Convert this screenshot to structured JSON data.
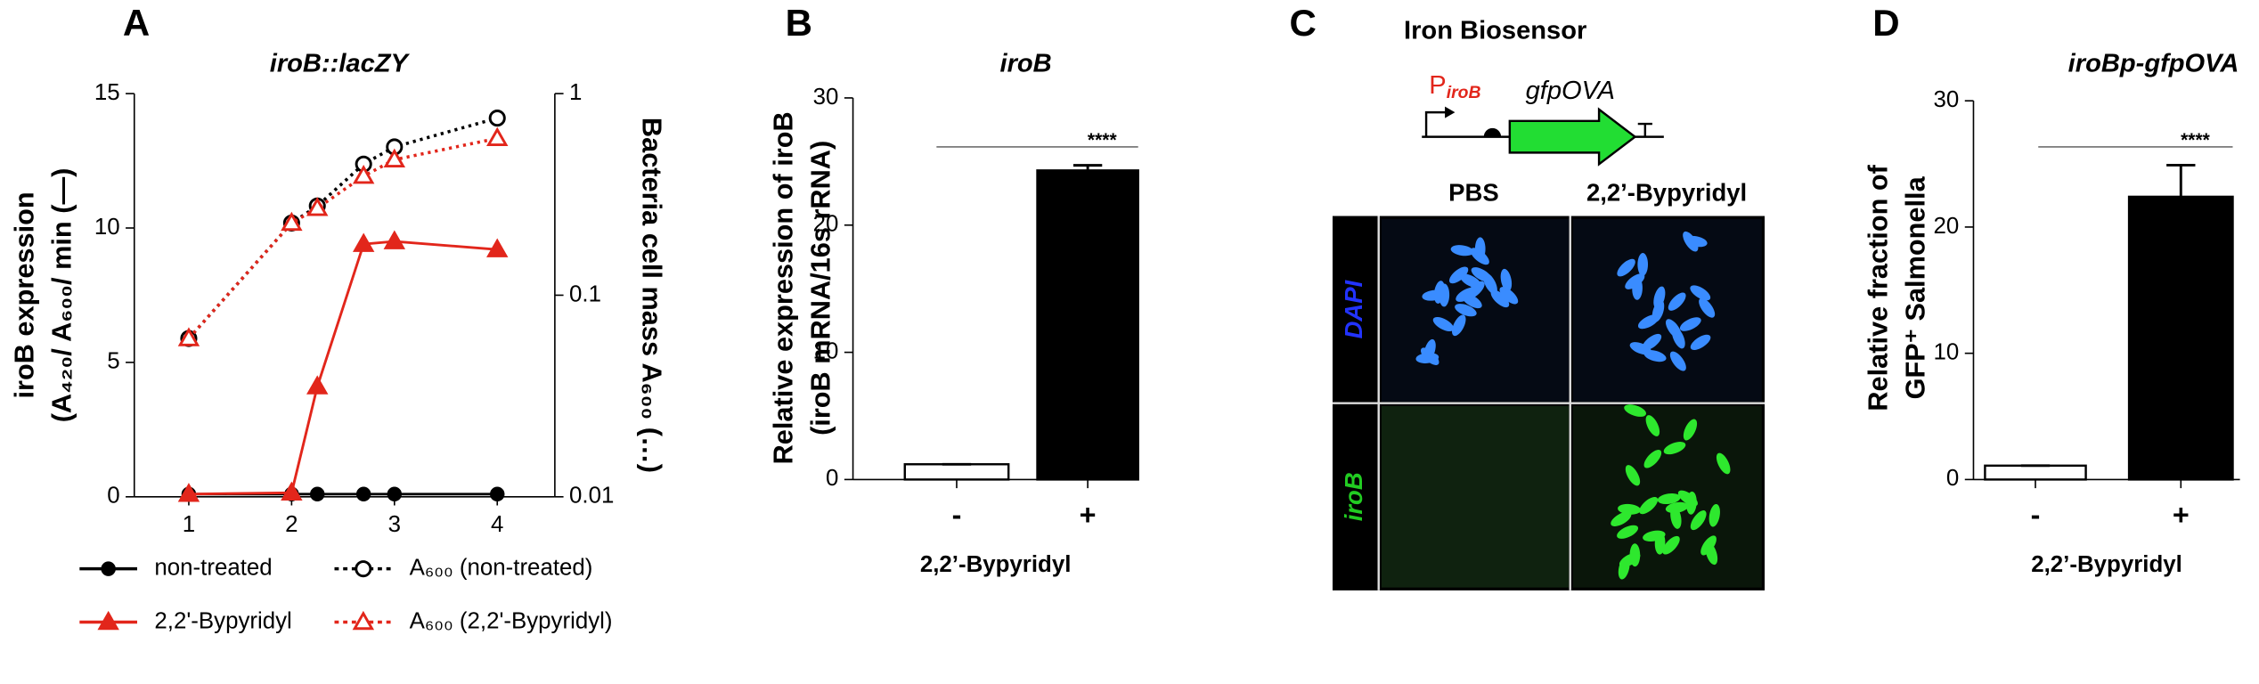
{
  "chart_data": [
    {
      "type": "line",
      "panel": "A",
      "title": "iroB::lacZY",
      "ylabel": [
        "iroB expression",
        "(A₄₂₀/ A₆₀₀/ min (—)"
      ],
      "y2label": "Bacteria cell mass A₆₀₀ (…)",
      "x": [
        1,
        2,
        2.25,
        2.7,
        3,
        4
      ],
      "xlim": [
        0.47,
        4.56
      ],
      "xticks": [
        1,
        2,
        3,
        4
      ],
      "ylim": [
        0,
        15
      ],
      "yticks": [
        0,
        5,
        10,
        15
      ],
      "y2lim": [
        0.01,
        1
      ],
      "y2scale": "log",
      "y2ticks": [
        0.01,
        0.1,
        1
      ],
      "series": [
        {
          "name": "non-treated",
          "color": "#000000",
          "marker": "circle-filled",
          "dashed": false,
          "values": [
            0.1,
            0.1,
            0.1,
            0.1,
            0.1,
            0.1
          ]
        },
        {
          "name": "2,2'-Bypyridyl",
          "color": "#e2261b",
          "marker": "triangle-filled",
          "dashed": false,
          "values": [
            0.1,
            0.15,
            4.1,
            9.4,
            9.5,
            9.2
          ]
        },
        {
          "name": "A₆₀₀ (non-treated)",
          "color": "#000000",
          "marker": "circle-open",
          "dashed": true,
          "axis": "y2",
          "values": [
            0.061,
            0.228,
            0.277,
            0.447,
            0.544,
            0.756
          ]
        },
        {
          "name": "A₆₀₀ (2,2'-Bypyridyl)",
          "color": "#e2261b",
          "marker": "triangle-open",
          "dashed": true,
          "axis": "y2",
          "values": [
            0.061,
            0.228,
            0.27,
            0.39,
            0.47,
            0.6
          ]
        }
      ]
    },
    {
      "type": "bar",
      "panel": "B",
      "title": "iroB",
      "ylabel": [
        "Relative expression of iroB",
        "(iroB mRNA/16s rRNA)"
      ],
      "xlabel": "2,2’-Bypyridyl",
      "categories": [
        "-",
        "+"
      ],
      "values": [
        1.2,
        24.3
      ],
      "errors": [
        0,
        0.4
      ],
      "colors": [
        "#ffffff",
        "#000000"
      ],
      "ylim": [
        0,
        30
      ],
      "yticks": [
        0,
        10,
        20,
        30
      ],
      "significance": "****"
    },
    {
      "type": "bar",
      "panel": "D",
      "title": "iroBp-gfpOVA",
      "ylabel": [
        "Relative fraction of",
        "GFP⁺ Salmonella"
      ],
      "xlabel": "2,2’-Bypyridyl",
      "categories": [
        "-",
        "+"
      ],
      "values": [
        1.1,
        22.4
      ],
      "errors": [
        0,
        2.5
      ],
      "colors": [
        "#ffffff",
        "#000000"
      ],
      "ylim": [
        0,
        30
      ],
      "yticks": [
        0,
        10,
        20,
        30
      ],
      "significance": "****"
    }
  ],
  "panel_c": {
    "panel": "C",
    "title": "Iron Biosensor",
    "promoter": "P",
    "promoter_sub": "iroB",
    "gene": "gfpOVA",
    "columns": [
      "PBS",
      "2,2’-Bypyridyl"
    ],
    "rows": [
      "DAPI",
      "iroB"
    ]
  }
}
